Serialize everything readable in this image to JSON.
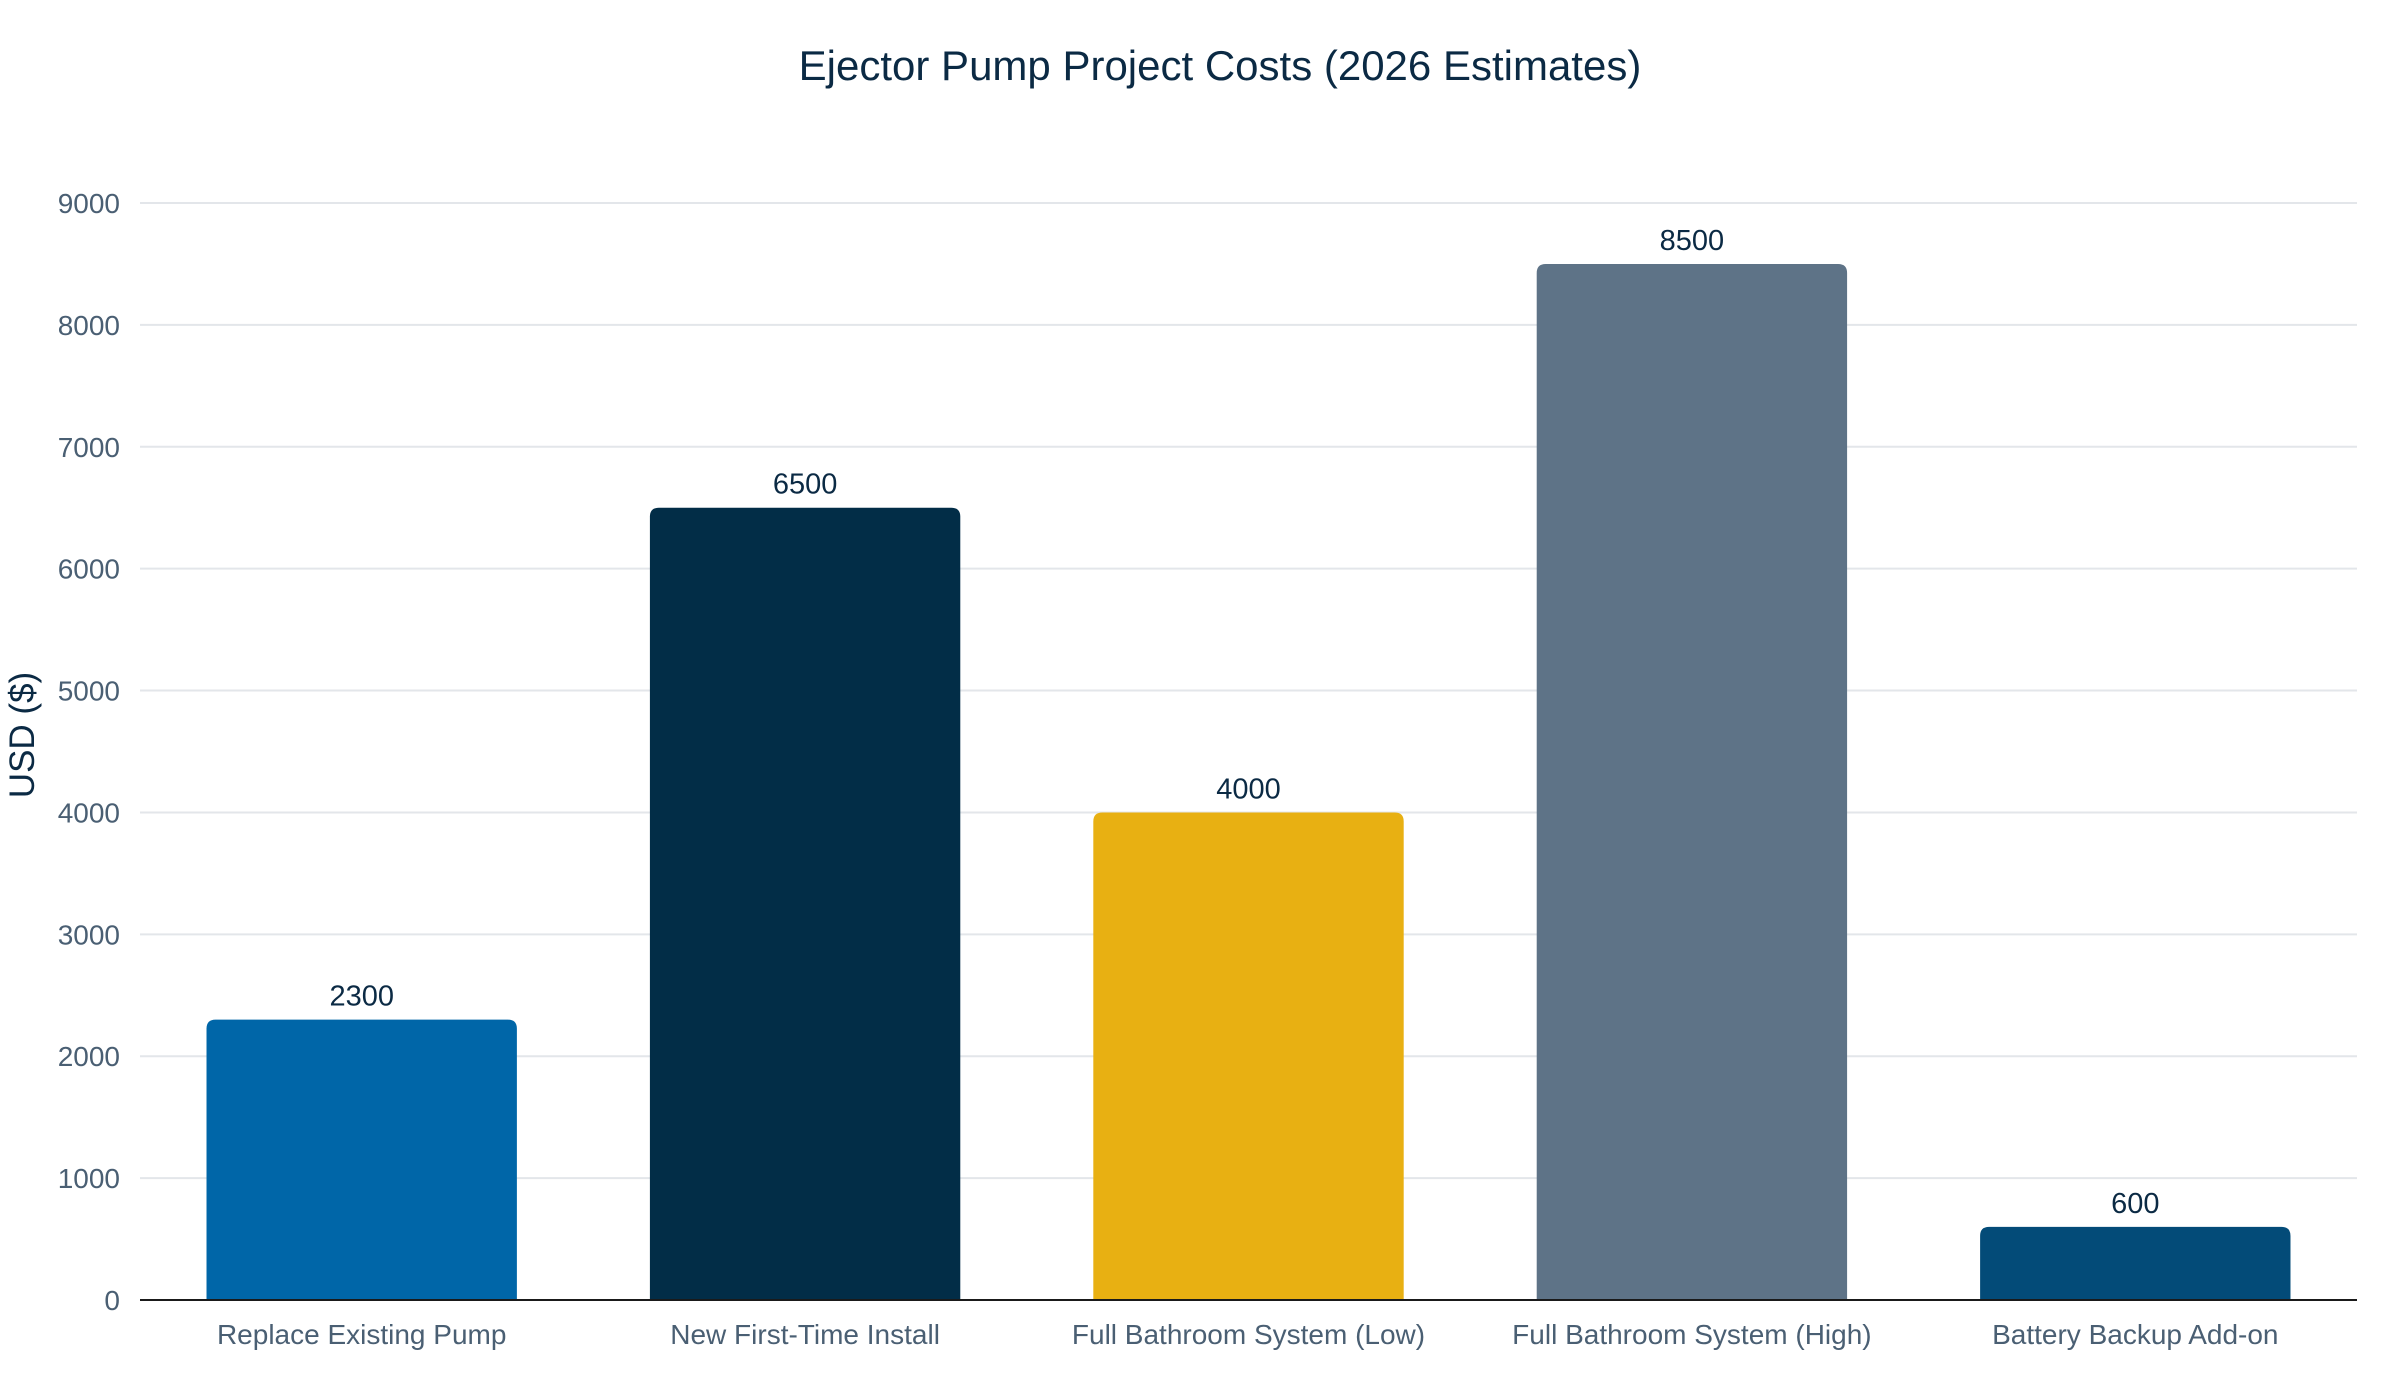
{
  "chart_data": {
    "type": "bar",
    "title": "Ejector Pump Project Costs (2026 Estimates)",
    "xlabel": "",
    "ylabel": "USD ($)",
    "categories": [
      "Replace Existing Pump",
      "New First-Time Install",
      "Full Bathroom System (Low)",
      "Full Bathroom System (High)",
      "Battery Backup Add-on"
    ],
    "values": [
      2300,
      6500,
      4000,
      8500,
      600
    ],
    "data_labels": [
      "2300",
      "6500",
      "4000",
      "8500",
      "600"
    ],
    "colors": [
      "#0066a8",
      "#022d47",
      "#e8b012",
      "#5e7387",
      "#034b78"
    ],
    "ylim": [
      0,
      9000
    ],
    "yticks": [
      0,
      1000,
      2000,
      3000,
      4000,
      5000,
      6000,
      7000,
      8000,
      9000
    ],
    "ytick_labels": [
      "0",
      "1000",
      "2000",
      "3000",
      "4000",
      "5000",
      "6000",
      "7000",
      "8000",
      "9000"
    ],
    "grid": true,
    "legend": "none"
  }
}
